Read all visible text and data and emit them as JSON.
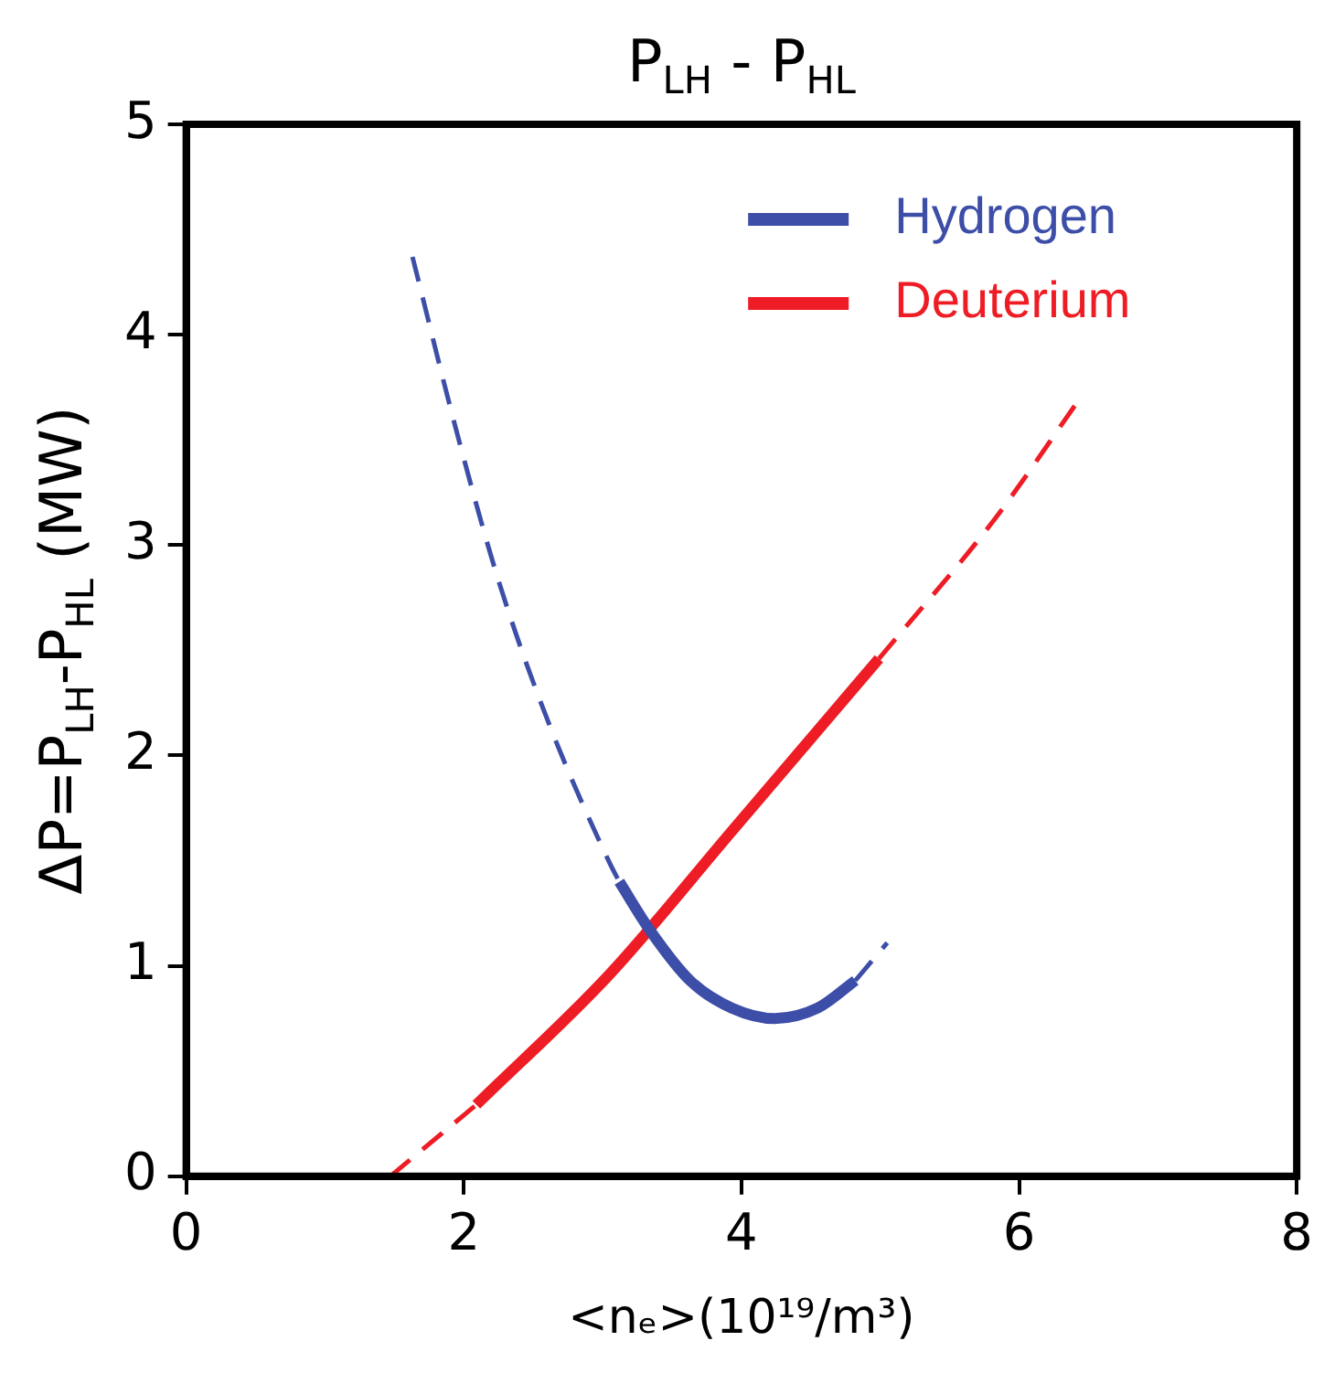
{
  "chart_data": {
    "type": "line",
    "title": "P$_{LH}$ - P$_{HL}$",
    "xlabel": "<nₑ>(10¹⁹/m³)",
    "ylabel": "ΔP=P$_{LH}$-P$_{HL}$ (MW)",
    "xlim": [
      0,
      8
    ],
    "xticks": [
      0,
      2,
      4,
      6,
      8
    ],
    "ylim": [
      0,
      5
    ],
    "yticks": [
      0,
      1,
      2,
      3,
      4,
      5
    ],
    "grid": false,
    "legend": "top right",
    "marker": "none",
    "series": [
      {
        "name": "Hydrogen",
        "color": "#3d4ea8",
        "line_style": "solid",
        "x": [
          3.12,
          3.34,
          3.63,
          3.93,
          4.24,
          4.55,
          4.82
        ],
        "values": [
          1.4,
          1.17,
          0.93,
          0.8,
          0.75,
          0.8,
          0.93
        ]
      },
      {
        "color": "#3d4ea8",
        "line_style": "dashed",
        "x": [
          1.63,
          1.96,
          2.26,
          2.62,
          3.05,
          3.12
        ],
        "values": [
          4.37,
          3.51,
          2.81,
          2.14,
          1.49,
          1.4
        ]
      },
      {
        "color": "#3d4ea8",
        "line_style": "dashed",
        "x": [
          4.82,
          5.05
        ],
        "values": [
          0.93,
          1.11
        ]
      },
      {
        "name": "Deuterium",
        "color": "#ee1c24",
        "line_style": "solid",
        "x": [
          2.09,
          3.05,
          3.93,
          4.99
        ],
        "values": [
          0.34,
          0.96,
          1.64,
          2.46
        ]
      },
      {
        "color": "#ee1c24",
        "line_style": "dashed",
        "x": [
          1.47,
          2.09
        ],
        "values": [
          0,
          0.34
        ]
      },
      {
        "color": "#ee1c24",
        "line_style": "dashed",
        "x": [
          4.99,
          5.82,
          6.42
        ],
        "values": [
          2.46,
          3.12,
          3.68
        ]
      }
    ]
  }
}
